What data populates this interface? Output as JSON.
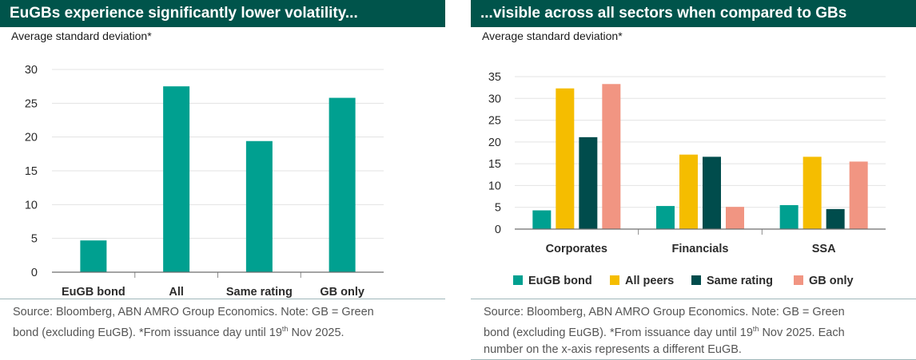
{
  "left": {
    "title": "EuGBs experience significantly lower volatility...",
    "subtitle": "Average standard deviation*",
    "source_line1": "Source: Bloomberg, ABN AMRO Group Economics. Note: GB = Green",
    "source_line2_pre": "bond (excluding EuGB). *From issuance day until 19",
    "source_sup": "th",
    "source_line2_post": " Nov 2025."
  },
  "right": {
    "title": "...visible across all sectors when compared to GBs",
    "subtitle": "Average standard deviation*",
    "source_line1": "Source: Bloomberg, ABN AMRO Group Economics. Note: GB = Green",
    "source_line2_pre": "bond (excluding EuGB). *From issuance day until 19",
    "source_sup": "th",
    "source_line2_post": " Nov 2025. Each",
    "source_line3": "number on the x-axis represents a different EuGB."
  },
  "colors": {
    "teal": "#00a090",
    "yellow": "#f5bd00",
    "dark_green": "#004c4c",
    "salmon": "#f19582",
    "title_bg": "#00544b"
  },
  "chart_data": [
    {
      "type": "bar",
      "title": "EuGBs experience significantly lower volatility...",
      "ylabel": "Average standard deviation*",
      "xlabel": "",
      "categories": [
        "EuGB bond",
        "All",
        "Same rating",
        "GB only"
      ],
      "values": [
        4.7,
        27.5,
        19.4,
        25.8
      ],
      "ylim": [
        0,
        30
      ],
      "yticks": [
        0,
        5,
        10,
        15,
        20,
        25,
        30
      ],
      "grid": true,
      "legend": "none"
    },
    {
      "type": "bar",
      "title": "...visible across all sectors when compared to GBs",
      "ylabel": "Average standard deviation*",
      "xlabel": "",
      "categories": [
        "Corporates",
        "Financials",
        "SSA"
      ],
      "series": [
        {
          "name": "EuGB bond",
          "color": "#00a090",
          "values": [
            4.3,
            5.3,
            5.5
          ]
        },
        {
          "name": "All peers",
          "color": "#f5bd00",
          "values": [
            32.3,
            17.1,
            16.6
          ]
        },
        {
          "name": "Same rating",
          "color": "#004c4c",
          "values": [
            21.1,
            16.6,
            4.6
          ]
        },
        {
          "name": "GB only",
          "color": "#f19582",
          "values": [
            33.3,
            5.1,
            15.5
          ]
        }
      ],
      "ylim": [
        0,
        35
      ],
      "yticks": [
        0,
        5,
        10,
        15,
        20,
        25,
        30,
        35
      ],
      "grid": true,
      "legend": "bottom"
    }
  ]
}
